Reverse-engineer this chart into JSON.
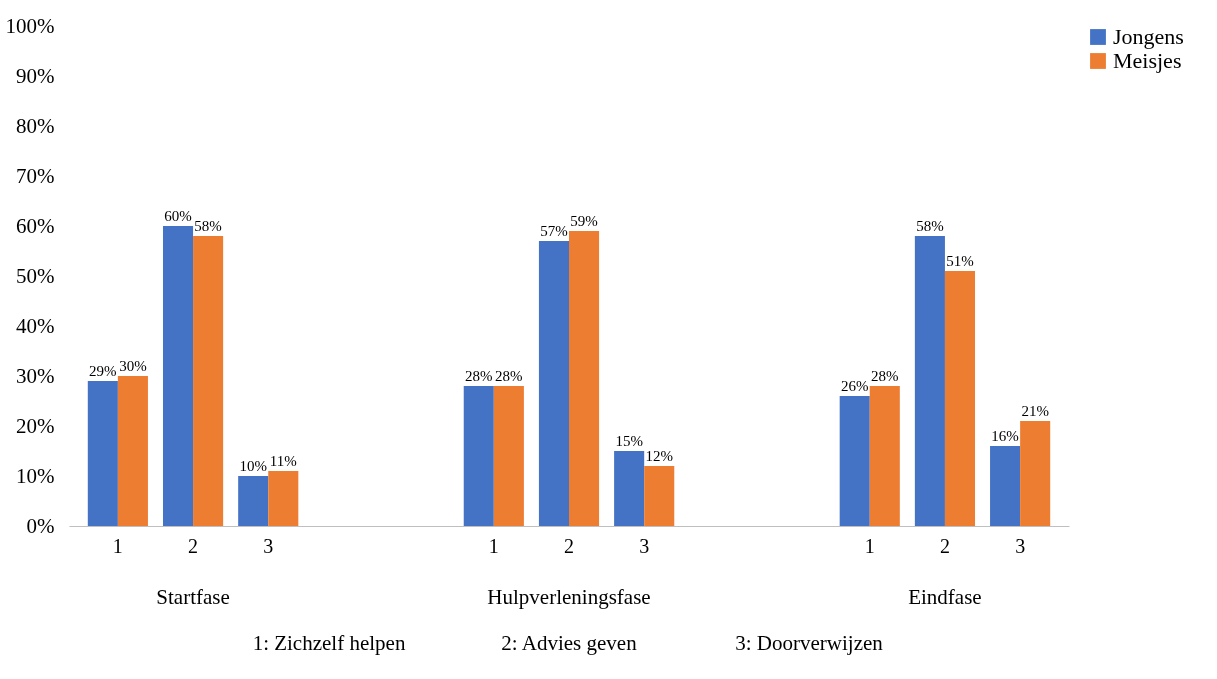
{
  "chart_data": {
    "type": "bar",
    "categories": [
      "1",
      "2",
      "3",
      null,
      null,
      "1",
      "2",
      "3",
      null,
      null,
      "1",
      "2",
      "3"
    ],
    "series": [
      {
        "name": "Jongens",
        "color": "#4472c4",
        "values": [
          29,
          60,
          10,
          null,
          null,
          28,
          57,
          15,
          null,
          null,
          26,
          58,
          16
        ],
        "value_labels": [
          "29%",
          "60%",
          "10%",
          null,
          null,
          "28%",
          "57%",
          "15%",
          null,
          null,
          "26%",
          "58%",
          "16%"
        ]
      },
      {
        "name": "Meisjes",
        "color": "#ed7d31",
        "values": [
          30,
          58,
          11,
          null,
          null,
          28,
          59,
          12,
          null,
          null,
          28,
          51,
          21
        ],
        "value_labels": [
          "30%",
          "58%",
          "11%",
          null,
          null,
          "28%",
          "59%",
          "12%",
          null,
          null,
          "28%",
          "51%",
          "21%"
        ]
      }
    ],
    "ylim": [
      0,
      100
    ],
    "yticks": [
      {
        "value": 0,
        "label": "0%"
      },
      {
        "value": 10,
        "label": "10%"
      },
      {
        "value": 20,
        "label": "20%"
      },
      {
        "value": 30,
        "label": "30%"
      },
      {
        "value": 40,
        "label": "40%"
      },
      {
        "value": 50,
        "label": "50%"
      },
      {
        "value": 60,
        "label": "60%"
      },
      {
        "value": 70,
        "label": "70%"
      },
      {
        "value": 80,
        "label": "80%"
      },
      {
        "value": 90,
        "label": "90%"
      },
      {
        "value": 100,
        "label": "100%"
      }
    ],
    "grid": false,
    "legend": "right",
    "annotations": [
      "Startfase",
      "Hulpverleningsfase",
      "Eindfase",
      "1: Zichzelf helpen",
      "2: Advies geven",
      "3: Doorverwijzen"
    ]
  }
}
